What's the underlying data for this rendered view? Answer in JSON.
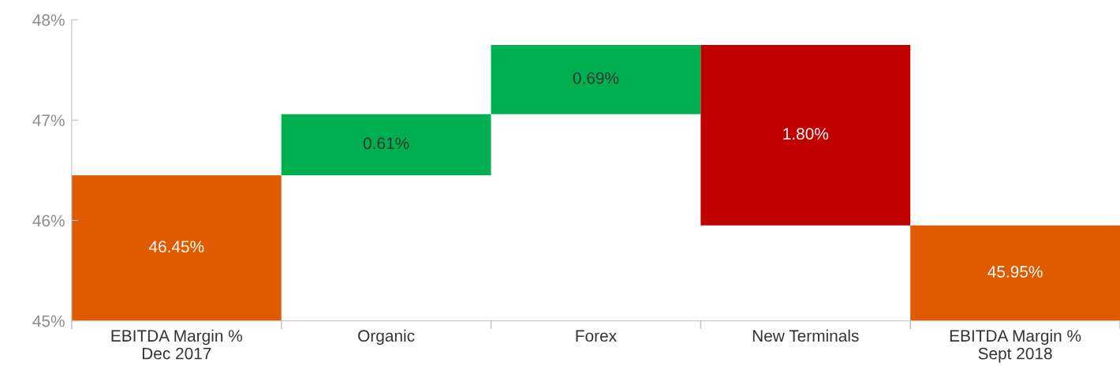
{
  "chart_data": {
    "type": "bar",
    "categories": [
      "EBITDA Margin %\nDec 2017",
      "Organic",
      "Forex",
      "New Terminals",
      "EBITDA Margin %\nSept 2018"
    ],
    "base": [
      45,
      46.45,
      47.06,
      45.95,
      45
    ],
    "values": [
      1.45,
      0.61,
      0.69,
      1.8,
      0.95
    ],
    "colors": [
      "#e05a00",
      "#00b050",
      "#00b050",
      "#c00000",
      "#e05a00"
    ],
    "value_labels": [
      "46.45%",
      "0.61%",
      "0.69%",
      "1.80%",
      "45.95%"
    ],
    "ylim": [
      45,
      48
    ],
    "yticks": [
      {
        "value": 45,
        "label": "45%"
      },
      {
        "value": 46,
        "label": "46%"
      },
      {
        "value": 47,
        "label": "47%"
      },
      {
        "value": 48,
        "label": "48%"
      }
    ],
    "grid": false
  }
}
